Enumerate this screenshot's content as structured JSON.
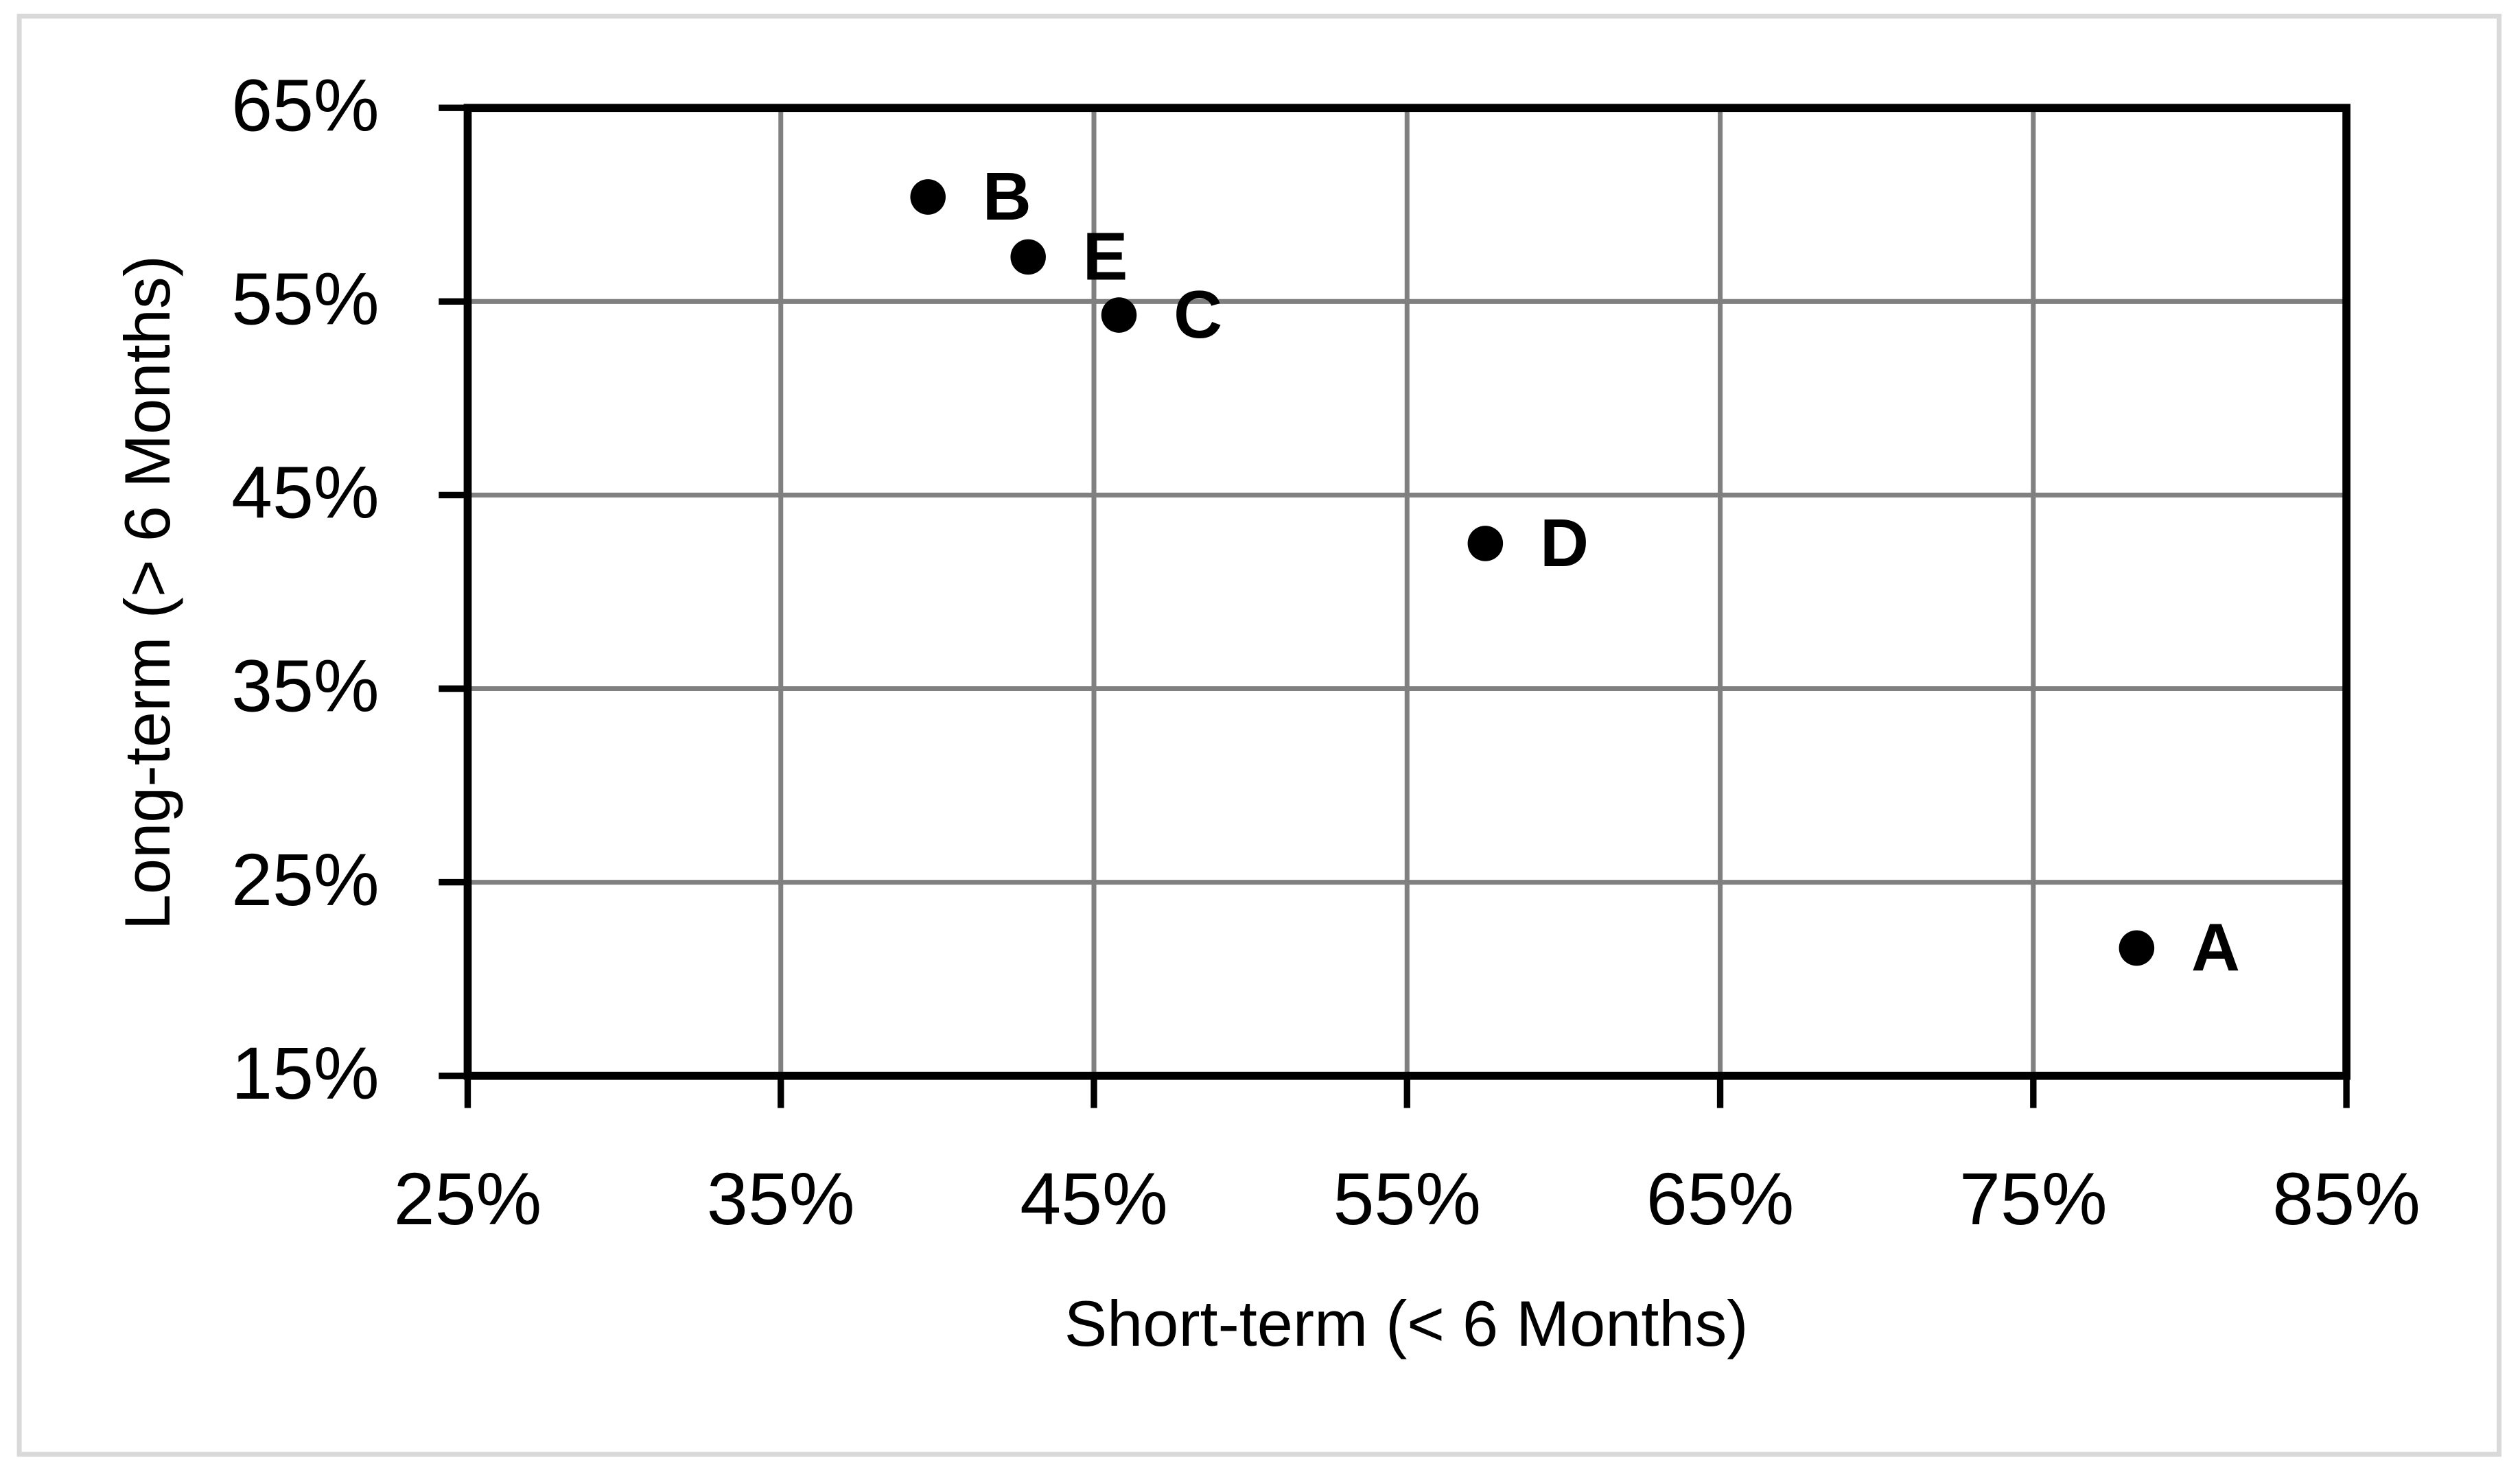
{
  "chart_data": {
    "type": "scatter",
    "x_label": "Short-term (< 6 Months)",
    "y_label": "Long-term (> 6 Months)",
    "x": [
      78.3,
      39.7,
      45.8,
      57.5,
      42.9
    ],
    "values": [
      21.6,
      60.4,
      54.3,
      42.5,
      57.3
    ],
    "labels": [
      "A",
      "B",
      "C",
      "D",
      "E"
    ],
    "color": "#000000",
    "xlim": [
      25,
      85
    ],
    "xticks": [
      {
        "value": 25,
        "label": "25%"
      },
      {
        "value": 35,
        "label": "35%"
      },
      {
        "value": 45,
        "label": "45%"
      },
      {
        "value": 55,
        "label": "55%"
      },
      {
        "value": 65,
        "label": "65%"
      },
      {
        "value": 75,
        "label": "75%"
      },
      {
        "value": 85,
        "label": "85%"
      }
    ],
    "ylim": [
      15,
      65
    ],
    "yticks": [
      {
        "value": 15,
        "label": "15%"
      },
      {
        "value": 25,
        "label": "25%"
      },
      {
        "value": 35,
        "label": "35%"
      },
      {
        "value": 45,
        "label": "45%"
      },
      {
        "value": 55,
        "label": "55%"
      },
      {
        "value": 65,
        "label": "65%"
      }
    ],
    "grid": true
  }
}
